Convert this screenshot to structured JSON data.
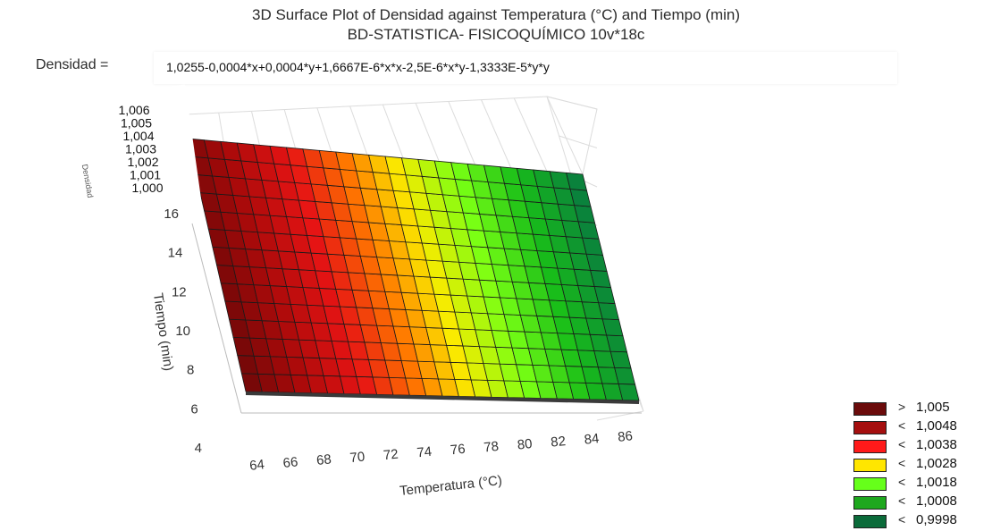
{
  "chart_data": {
    "type": "surface3d",
    "title": "3D Surface Plot of Densidad against Temperatura (°C) and Tiempo (min)",
    "subtitle": "BD-STATISTICA- FISICOQUÍMICO 10v*18c",
    "equation_lhs": "Densidad =",
    "equation": "1,0255-0,0004*x+0,0004*y+1,6667E-6*x*x-2,5E-6*x*y-1,3333E-5*y*y",
    "xlabel": "Temperatura (°C)",
    "ylabel": "Tiempo (min)",
    "zlabel": "Densidad",
    "x_ticks": [
      "64",
      "66",
      "68",
      "70",
      "72",
      "74",
      "76",
      "78",
      "80",
      "82",
      "84",
      "86"
    ],
    "y_ticks": [
      "4",
      "6",
      "8",
      "10",
      "12",
      "14",
      "16"
    ],
    "z_ticks": [
      "1,006",
      "1,005",
      "1,004",
      "1,003",
      "1,002",
      "1,001",
      "1,000"
    ],
    "xlim": [
      63,
      87
    ],
    "ylim": [
      4,
      18
    ],
    "legend": [
      {
        "op": ">",
        "label": "1,005",
        "color": "#6b0b0b"
      },
      {
        "op": "<",
        "label": "1,0048",
        "color": "#a50f0f"
      },
      {
        "op": "<",
        "label": "1,0038",
        "color": "#ff1a1a"
      },
      {
        "op": "<",
        "label": "1,0028",
        "color": "#ffe600"
      },
      {
        "op": "<",
        "label": "1,0018",
        "color": "#66ff1a"
      },
      {
        "op": "<",
        "label": "1,0008",
        "color": "#1ea81e"
      },
      {
        "op": "<",
        "label": "0,9998",
        "color": "#0b6b3a"
      }
    ]
  }
}
